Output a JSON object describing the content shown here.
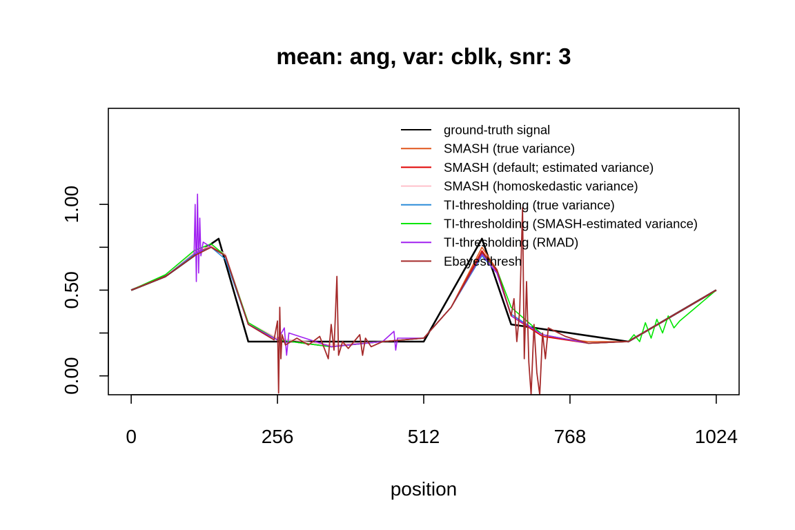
{
  "chart_data": {
    "type": "line",
    "title": "mean: ang, var: cblk, snr: 3",
    "xlabel": "position",
    "ylabel": "",
    "xlim": [
      -40,
      1064
    ],
    "ylim": [
      -0.11,
      1.56
    ],
    "x_ticks": [
      0,
      256,
      512,
      768,
      1024
    ],
    "x_tick_labels": [
      "0",
      "256",
      "512",
      "768",
      "1024"
    ],
    "y_ticks": [
      0.0,
      0.25,
      0.5,
      0.75,
      1.0
    ],
    "y_tick_labels": [
      "0.00",
      "",
      "0.50",
      "",
      "1.00"
    ],
    "grid": false,
    "legend_position": "top-right",
    "series": [
      {
        "name": "ground-truth signal",
        "color": "#000000",
        "width": 2.6,
        "points": [
          [
            0,
            0.5
          ],
          [
            60,
            0.58
          ],
          [
            110,
            0.7
          ],
          [
            153,
            0.8
          ],
          [
            205,
            0.2
          ],
          [
            512,
            0.2
          ],
          [
            614,
            0.8
          ],
          [
            665,
            0.3
          ],
          [
            870,
            0.2
          ],
          [
            1024,
            0.5
          ]
        ]
      },
      {
        "name": "SMASH (true variance)",
        "color": "#E0561B",
        "width": 1.6,
        "points": [
          [
            0,
            0.5
          ],
          [
            60,
            0.58
          ],
          [
            110,
            0.71
          ],
          [
            140,
            0.76
          ],
          [
            165,
            0.7
          ],
          [
            205,
            0.3
          ],
          [
            256,
            0.21
          ],
          [
            350,
            0.17
          ],
          [
            440,
            0.2
          ],
          [
            512,
            0.22
          ],
          [
            560,
            0.4
          ],
          [
            614,
            0.75
          ],
          [
            640,
            0.62
          ],
          [
            665,
            0.35
          ],
          [
            720,
            0.23
          ],
          [
            800,
            0.2
          ],
          [
            870,
            0.2
          ],
          [
            1024,
            0.5
          ]
        ]
      },
      {
        "name": "SMASH (default; estimated variance)",
        "color": "#E00000",
        "width": 1.6,
        "points": [
          [
            0,
            0.5
          ],
          [
            60,
            0.58
          ],
          [
            110,
            0.71
          ],
          [
            140,
            0.76
          ],
          [
            165,
            0.7
          ],
          [
            205,
            0.3
          ],
          [
            256,
            0.21
          ],
          [
            350,
            0.17
          ],
          [
            440,
            0.2
          ],
          [
            512,
            0.22
          ],
          [
            560,
            0.4
          ],
          [
            614,
            0.73
          ],
          [
            640,
            0.61
          ],
          [
            665,
            0.35
          ],
          [
            720,
            0.23
          ],
          [
            800,
            0.19
          ],
          [
            870,
            0.2
          ],
          [
            1024,
            0.5
          ]
        ]
      },
      {
        "name": "SMASH (homoskedastic variance)",
        "color": "#FFC0CB",
        "width": 1.6,
        "points": [
          [
            0,
            0.5
          ],
          [
            60,
            0.58
          ],
          [
            110,
            0.72
          ],
          [
            140,
            0.76
          ],
          [
            165,
            0.71
          ],
          [
            205,
            0.31
          ],
          [
            256,
            0.22
          ],
          [
            350,
            0.18
          ],
          [
            440,
            0.2
          ],
          [
            512,
            0.22
          ],
          [
            560,
            0.4
          ],
          [
            614,
            0.72
          ],
          [
            640,
            0.6
          ],
          [
            665,
            0.35
          ],
          [
            720,
            0.24
          ],
          [
            800,
            0.19
          ],
          [
            870,
            0.2
          ],
          [
            1024,
            0.5
          ]
        ]
      },
      {
        "name": "TI-thresholding (true variance)",
        "color": "#2B8CD8",
        "width": 1.6,
        "points": [
          [
            0,
            0.5
          ],
          [
            60,
            0.58
          ],
          [
            110,
            0.71
          ],
          [
            140,
            0.75
          ],
          [
            165,
            0.68
          ],
          [
            205,
            0.3
          ],
          [
            256,
            0.21
          ],
          [
            350,
            0.17
          ],
          [
            440,
            0.2
          ],
          [
            512,
            0.22
          ],
          [
            560,
            0.4
          ],
          [
            614,
            0.7
          ],
          [
            640,
            0.6
          ],
          [
            665,
            0.36
          ],
          [
            720,
            0.24
          ],
          [
            800,
            0.19
          ],
          [
            870,
            0.2
          ],
          [
            1024,
            0.5
          ]
        ]
      },
      {
        "name": "TI-thresholding (SMASH-estimated variance)",
        "color": "#00E600",
        "width": 1.6,
        "points": [
          [
            0,
            0.5
          ],
          [
            60,
            0.59
          ],
          [
            110,
            0.73
          ],
          [
            140,
            0.77
          ],
          [
            165,
            0.7
          ],
          [
            205,
            0.31
          ],
          [
            256,
            0.21
          ],
          [
            350,
            0.17
          ],
          [
            440,
            0.2
          ],
          [
            512,
            0.22
          ],
          [
            560,
            0.4
          ],
          [
            614,
            0.71
          ],
          [
            640,
            0.62
          ],
          [
            665,
            0.4
          ],
          [
            720,
            0.24
          ],
          [
            800,
            0.19
          ],
          [
            870,
            0.2
          ],
          [
            880,
            0.24
          ],
          [
            890,
            0.2
          ],
          [
            900,
            0.31
          ],
          [
            910,
            0.22
          ],
          [
            920,
            0.33
          ],
          [
            930,
            0.25
          ],
          [
            940,
            0.35
          ],
          [
            950,
            0.28
          ],
          [
            960,
            0.32
          ],
          [
            1024,
            0.5
          ]
        ]
      },
      {
        "name": "TI-thresholding (RMAD)",
        "color": "#A020F0",
        "width": 1.6,
        "points": [
          [
            0,
            0.5
          ],
          [
            60,
            0.58
          ],
          [
            110,
            0.7
          ],
          [
            112,
            1.0
          ],
          [
            114,
            0.55
          ],
          [
            116,
            1.06
          ],
          [
            118,
            0.6
          ],
          [
            120,
            0.92
          ],
          [
            122,
            0.7
          ],
          [
            126,
            0.78
          ],
          [
            140,
            0.75
          ],
          [
            165,
            0.7
          ],
          [
            205,
            0.3
          ],
          [
            256,
            0.21
          ],
          [
            268,
            0.28
          ],
          [
            272,
            0.12
          ],
          [
            276,
            0.25
          ],
          [
            350,
            0.17
          ],
          [
            440,
            0.2
          ],
          [
            460,
            0.26
          ],
          [
            463,
            0.15
          ],
          [
            466,
            0.22
          ],
          [
            512,
            0.22
          ],
          [
            560,
            0.4
          ],
          [
            614,
            0.71
          ],
          [
            640,
            0.6
          ],
          [
            665,
            0.35
          ],
          [
            720,
            0.24
          ],
          [
            800,
            0.19
          ],
          [
            870,
            0.2
          ],
          [
            1024,
            0.5
          ]
        ]
      },
      {
        "name": "Ebayesthresh",
        "color": "#A52A2A",
        "width": 1.8,
        "points": [
          [
            0,
            0.5
          ],
          [
            60,
            0.58
          ],
          [
            110,
            0.7
          ],
          [
            140,
            0.75
          ],
          [
            165,
            0.7
          ],
          [
            205,
            0.3
          ],
          [
            250,
            0.21
          ],
          [
            256,
            0.32
          ],
          [
            258,
            -0.1
          ],
          [
            260,
            0.4
          ],
          [
            262,
            0.1
          ],
          [
            264,
            0.24
          ],
          [
            270,
            0.18
          ],
          [
            290,
            0.22
          ],
          [
            310,
            0.18
          ],
          [
            330,
            0.23
          ],
          [
            345,
            0.1
          ],
          [
            350,
            0.3
          ],
          [
            355,
            0.15
          ],
          [
            360,
            0.58
          ],
          [
            363,
            0.12
          ],
          [
            370,
            0.2
          ],
          [
            380,
            0.16
          ],
          [
            400,
            0.24
          ],
          [
            405,
            0.12
          ],
          [
            410,
            0.22
          ],
          [
            420,
            0.17
          ],
          [
            440,
            0.2
          ],
          [
            512,
            0.22
          ],
          [
            560,
            0.4
          ],
          [
            614,
            0.72
          ],
          [
            640,
            0.62
          ],
          [
            665,
            0.35
          ],
          [
            670,
            0.45
          ],
          [
            675,
            0.2
          ],
          [
            680,
            0.38
          ],
          [
            685,
            0.98
          ],
          [
            688,
            0.1
          ],
          [
            692,
            0.55
          ],
          [
            696,
            0.08
          ],
          [
            700,
            -0.11
          ],
          [
            705,
            0.3
          ],
          [
            710,
            0.02
          ],
          [
            715,
            -0.11
          ],
          [
            720,
            0.25
          ],
          [
            725,
            0.1
          ],
          [
            730,
            0.28
          ],
          [
            760,
            0.23
          ],
          [
            800,
            0.19
          ],
          [
            870,
            0.2
          ],
          [
            1024,
            0.5
          ]
        ]
      }
    ]
  }
}
